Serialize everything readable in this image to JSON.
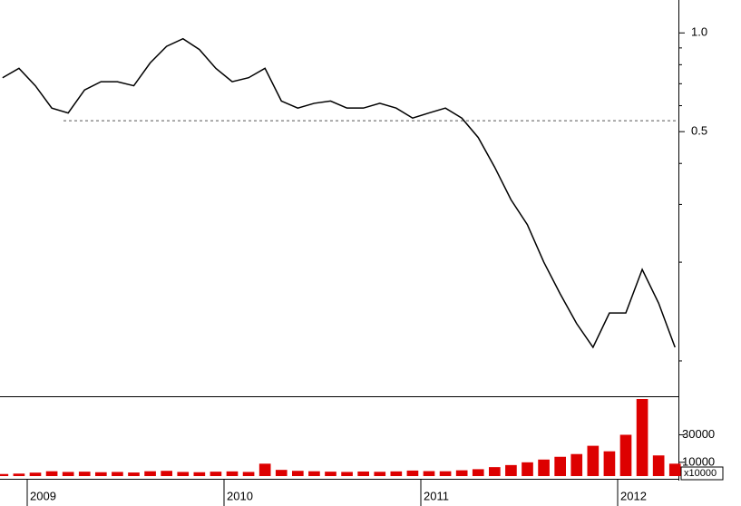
{
  "chart_data": [
    {
      "type": "line",
      "log_scale": true,
      "color": "#000000",
      "categories": [
        null,
        null,
        "2009",
        null,
        null,
        null,
        null,
        null,
        null,
        null,
        null,
        null,
        null,
        null,
        "2010",
        null,
        null,
        null,
        null,
        null,
        null,
        null,
        null,
        null,
        null,
        null,
        "2011",
        null,
        null,
        null,
        null,
        null,
        null,
        null,
        null,
        null,
        null,
        null,
        "2012",
        null,
        null,
        null
      ],
      "values": [
        0.73,
        0.78,
        0.69,
        0.59,
        0.57,
        0.67,
        0.71,
        0.71,
        0.69,
        0.81,
        0.91,
        0.96,
        0.89,
        0.78,
        0.71,
        0.73,
        0.78,
        0.62,
        0.59,
        0.61,
        0.62,
        0.59,
        0.59,
        0.61,
        0.59,
        0.55,
        0.57,
        0.59,
        0.55,
        0.48,
        0.39,
        0.31,
        0.26,
        0.2,
        0.16,
        0.13,
        0.11,
        0.14,
        0.14,
        0.19,
        0.15,
        0.11
      ],
      "ylim": [
        0.078,
        1.26
      ],
      "yticks": [
        0.5,
        {
          "value": 1,
          "label": "1.0"
        }
      ],
      "reference_line": 0.54
    },
    {
      "type": "bar",
      "color": "#dd0000",
      "values": [
        1500,
        1800,
        2500,
        3500,
        3000,
        3200,
        2800,
        3000,
        2600,
        3500,
        3800,
        3000,
        2800,
        3200,
        3400,
        3000,
        9000,
        4500,
        3800,
        3500,
        3200,
        3000,
        3300,
        3100,
        3400,
        4000,
        3600,
        3500,
        4200,
        5000,
        6500,
        8000,
        10000,
        12000,
        14000,
        16000,
        22000,
        18000,
        30000,
        56000,
        15000,
        9000
      ],
      "ylim": [
        0,
        56000
      ],
      "yticks": [
        10000,
        30000
      ],
      "annotation": "x10000"
    }
  ]
}
